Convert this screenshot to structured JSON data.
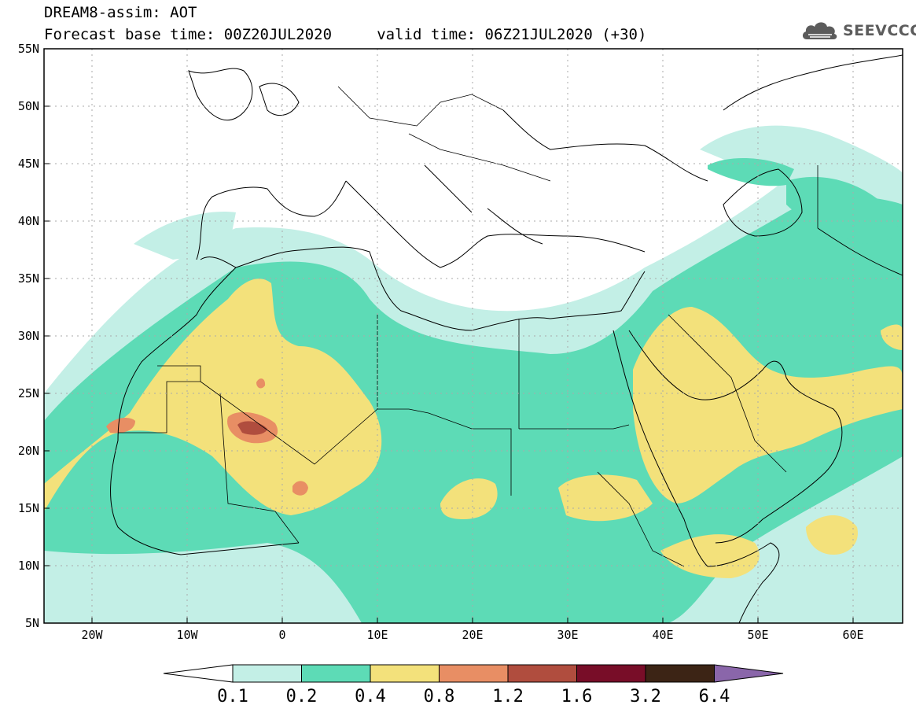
{
  "header": {
    "model_line": "DREAM8-assim: AOT",
    "time_line": "Forecast base time: 00Z20JUL2020     valid time: 06Z21JUL2020 (+30)"
  },
  "logo": {
    "text": "SEEVCCC",
    "icon": "cloud-icon"
  },
  "map": {
    "lon_range": [
      -25,
      65
    ],
    "lat_range": [
      5,
      55
    ],
    "lat_labels": [
      "55N",
      "50N",
      "45N",
      "40N",
      "35N",
      "30N",
      "25N",
      "20N",
      "15N",
      "10N",
      "5N"
    ],
    "lon_labels": [
      "20W",
      "10W",
      "0",
      "10E",
      "20E",
      "30E",
      "40E",
      "50E",
      "60E"
    ]
  },
  "colorbar": {
    "labels": [
      "0.1",
      "0.2",
      "0.4",
      "0.8",
      "1.2",
      "1.6",
      "3.2",
      "6.4"
    ],
    "colors": [
      "#ffffff",
      "#c3efe6",
      "#5ddbb6",
      "#f3e17b",
      "#e88e64",
      "#b04d3e",
      "#780d28",
      "#3c2415",
      "#8a66aa"
    ]
  },
  "legend_colors": {
    "level_01": "#c3efe6",
    "level_02": "#5ddbb6",
    "level_04": "#f3e17b",
    "level_08": "#e88e64",
    "level_12": "#b04d3e"
  }
}
